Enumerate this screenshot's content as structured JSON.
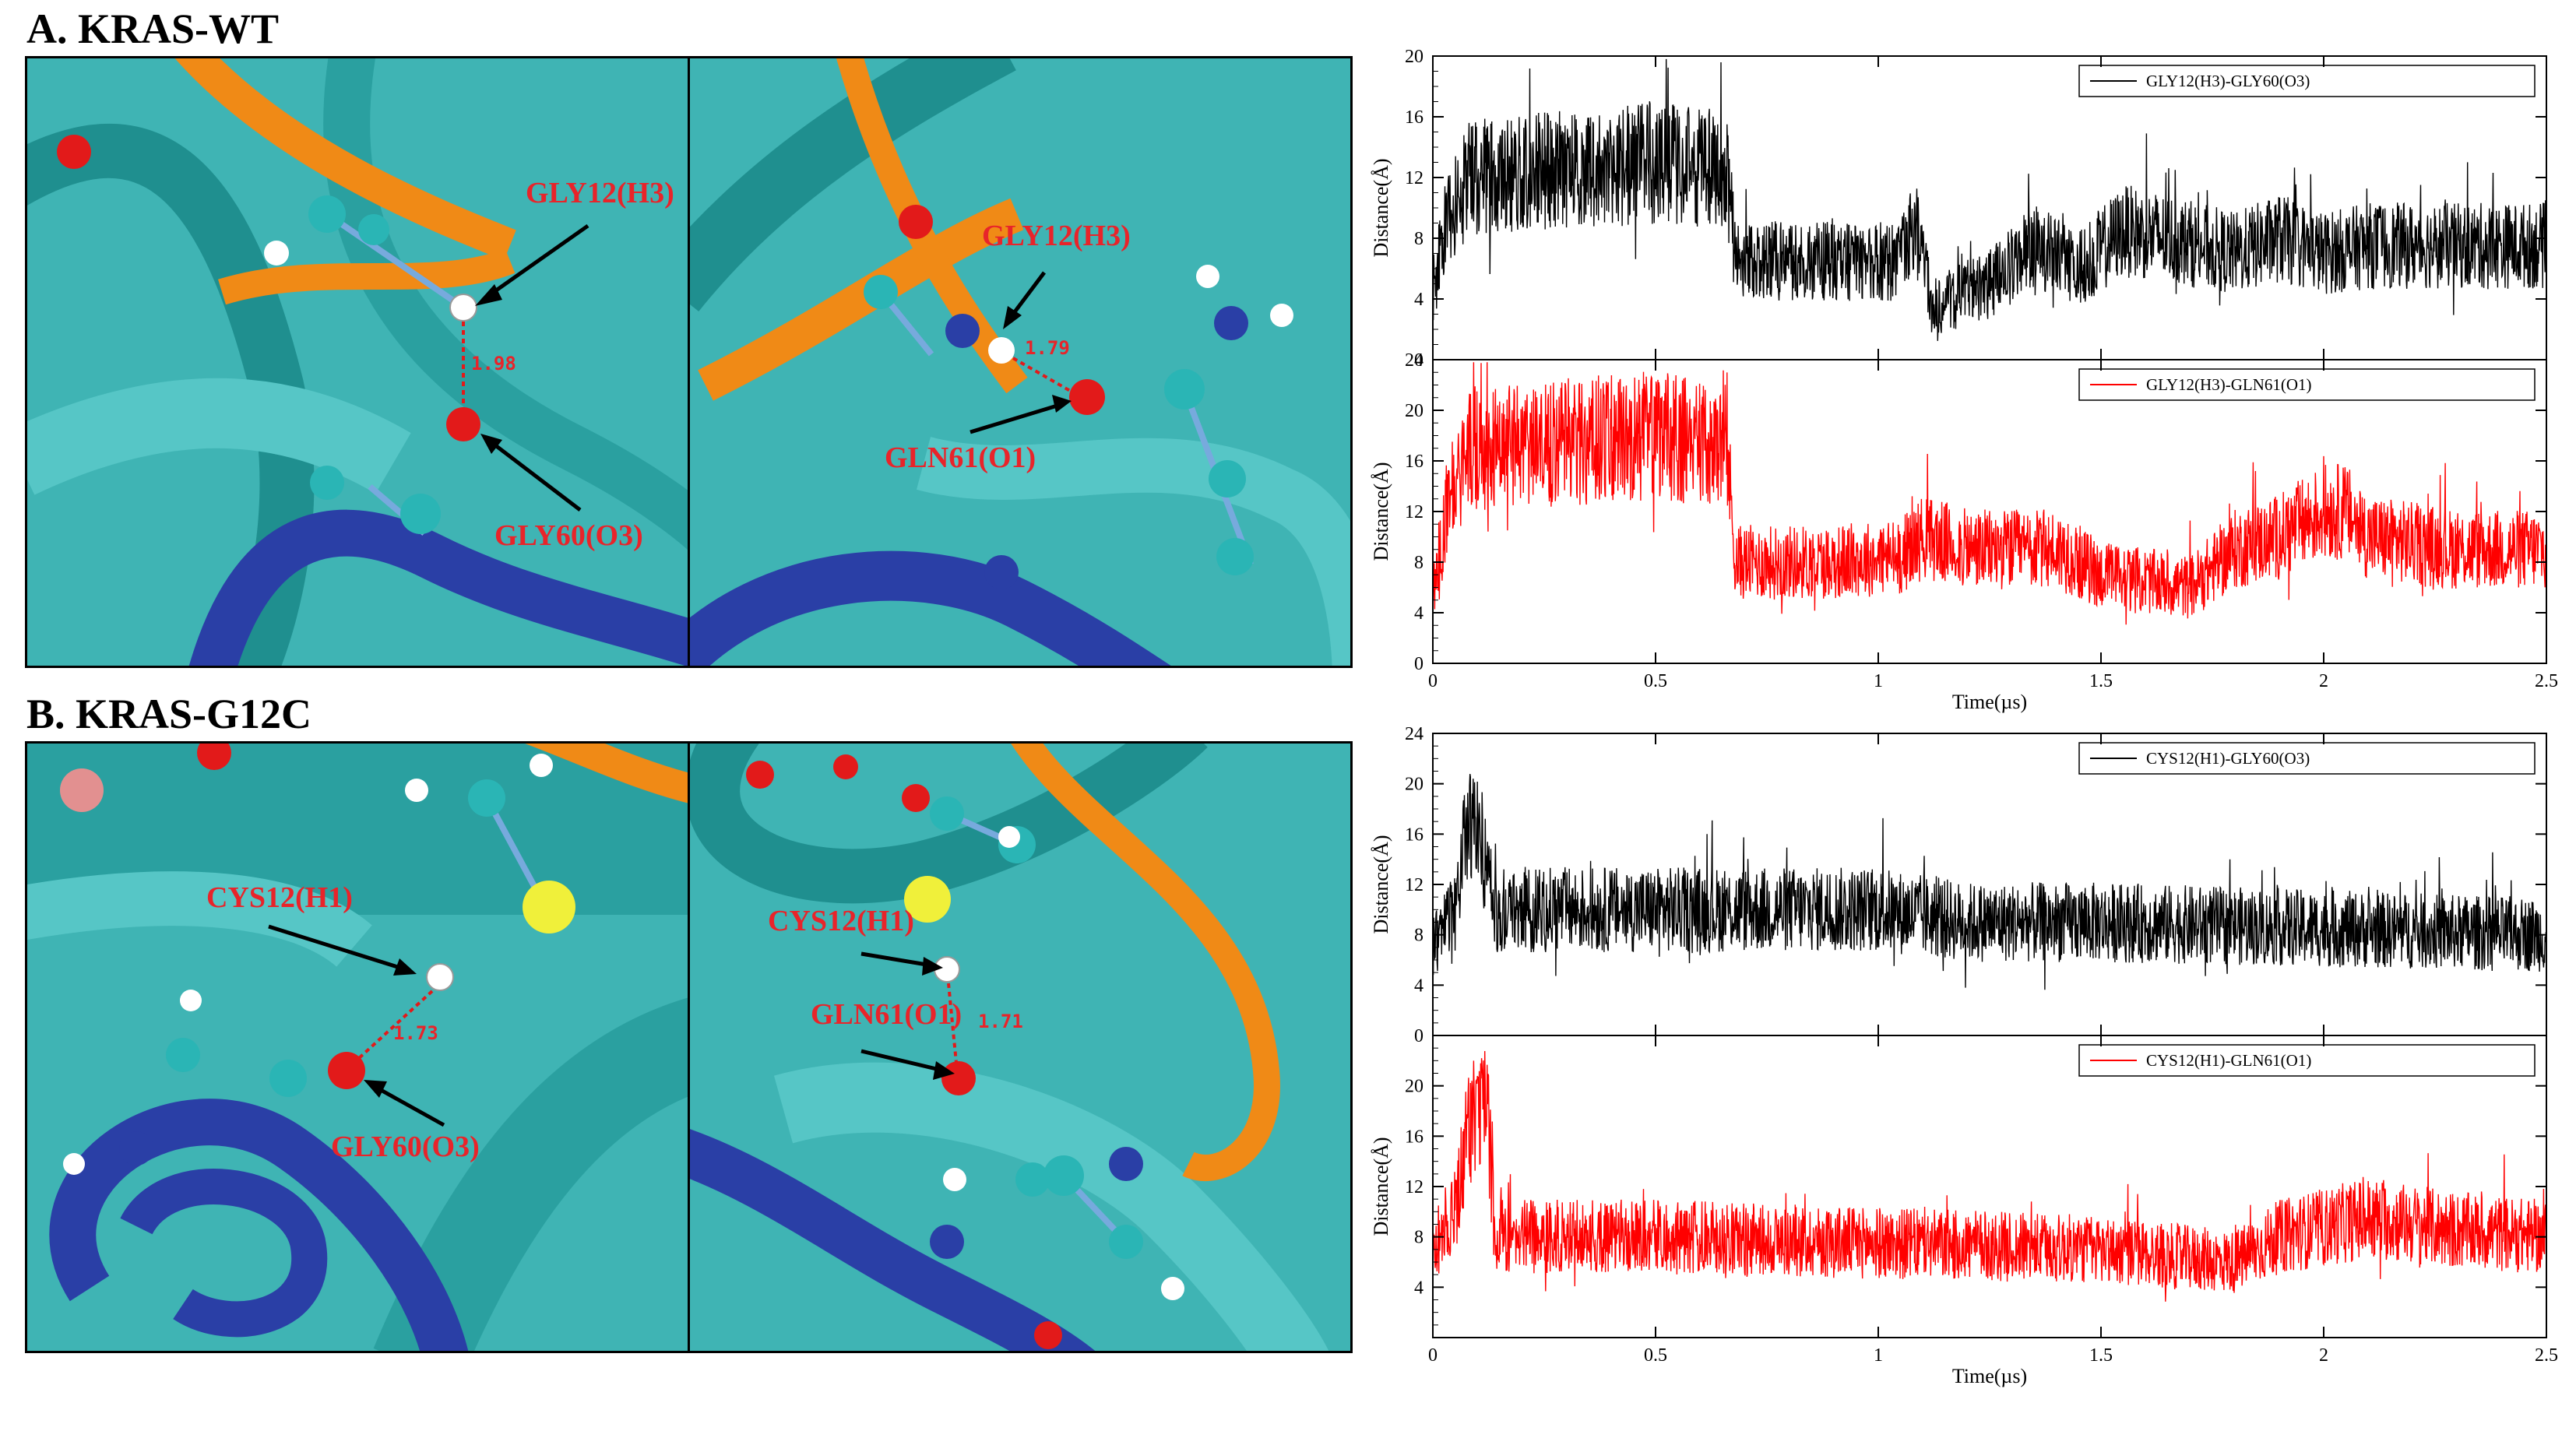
{
  "sections": {
    "a": "A. KRAS-WT",
    "b": "B. KRAS-G12C"
  },
  "structures": {
    "a_left": {
      "donor": "GLY12(H3)",
      "acceptor": "GLY60(O3)",
      "distance": "1.98"
    },
    "a_right": {
      "donor": "GLY12(H3)",
      "acceptor": "GLN61(O1)",
      "distance": "1.79"
    },
    "b_left": {
      "donor": "CYS12(H1)",
      "acceptor": "GLY60(O3)",
      "distance": "1.73"
    },
    "b_right": {
      "donor": "CYS12(H1)",
      "acceptor": "GLN61(O1)",
      "distance": "1.71"
    }
  },
  "colors": {
    "black_series": "#000000",
    "red_series": "#ff0000",
    "ribbon_cyan": "#3fb4b4",
    "ribbon_orange": "#f08a16",
    "ribbon_blue": "#2a3fa6",
    "label_red": "#e8242a"
  },
  "chart_data": [
    {
      "type": "line",
      "group": "A. KRAS-WT",
      "ylabel": "Distance(Å)",
      "xlabel": "",
      "xlim": [
        0,
        2.5
      ],
      "ylim": [
        0,
        20
      ],
      "yticks": [
        0,
        4,
        8,
        12,
        16,
        20
      ],
      "xticks": [],
      "legend": "top-right",
      "series": [
        {
          "name": "GLY12(H3)-GLY60(O3)",
          "color": "#000000",
          "profile": [
            [
              0,
              4.5
            ],
            [
              0.03,
              9
            ],
            [
              0.08,
              12
            ],
            [
              0.3,
              12.5
            ],
            [
              0.5,
              13
            ],
            [
              0.66,
              12.5
            ],
            [
              0.68,
              6.5
            ],
            [
              0.9,
              6.5
            ],
            [
              1.05,
              6.5
            ],
            [
              1.08,
              9
            ],
            [
              1.1,
              7
            ],
            [
              1.12,
              3.5
            ],
            [
              1.25,
              5
            ],
            [
              1.35,
              7.5
            ],
            [
              1.45,
              6
            ],
            [
              1.55,
              8.5
            ],
            [
              1.65,
              8
            ],
            [
              1.8,
              7
            ],
            [
              1.9,
              8
            ],
            [
              2.0,
              7
            ],
            [
              2.1,
              7.5
            ],
            [
              2.3,
              7.5
            ],
            [
              2.5,
              7.5
            ]
          ]
        }
      ]
    },
    {
      "type": "line",
      "group": "A. KRAS-WT",
      "ylabel": "Distance(Å)",
      "xlabel": "Time(µs)",
      "xlim": [
        0,
        2.5
      ],
      "ylim": [
        0,
        24
      ],
      "yticks": [
        0,
        4,
        8,
        12,
        16,
        20,
        24
      ],
      "xticks": [
        0,
        0.5,
        1,
        1.5,
        2,
        2.5
      ],
      "legend": "top-right",
      "series": [
        {
          "name": "GLY12(H3)-GLN61(O1)",
          "color": "#ff0000",
          "profile": [
            [
              0,
              5
            ],
            [
              0.03,
              12
            ],
            [
              0.08,
              17
            ],
            [
              0.3,
              17.5
            ],
            [
              0.5,
              18
            ],
            [
              0.66,
              17
            ],
            [
              0.68,
              8
            ],
            [
              0.9,
              8
            ],
            [
              1.05,
              8.5
            ],
            [
              1.1,
              10
            ],
            [
              1.2,
              9
            ],
            [
              1.4,
              9
            ],
            [
              1.5,
              7
            ],
            [
              1.7,
              6
            ],
            [
              1.8,
              9
            ],
            [
              1.9,
              10
            ],
            [
              2.0,
              12
            ],
            [
              2.05,
              12
            ],
            [
              2.1,
              10
            ],
            [
              2.3,
              9
            ],
            [
              2.5,
              9
            ]
          ]
        }
      ]
    },
    {
      "type": "line",
      "group": "B. KRAS-G12C",
      "ylabel": "Distance(Å)",
      "xlabel": "",
      "xlim": [
        0,
        2.5
      ],
      "ylim": [
        0,
        24
      ],
      "yticks": [
        0,
        4,
        8,
        12,
        16,
        20,
        24
      ],
      "xticks": [],
      "legend": "top-right",
      "series": [
        {
          "name": "CYS12(H1)-GLY60(O3)",
          "color": "#000000",
          "profile": [
            [
              0,
              7
            ],
            [
              0.05,
              10
            ],
            [
              0.08,
              17
            ],
            [
              0.11,
              15
            ],
            [
              0.14,
              10
            ],
            [
              0.5,
              10
            ],
            [
              1.0,
              10
            ],
            [
              1.2,
              9
            ],
            [
              1.5,
              9
            ],
            [
              2.0,
              8.5
            ],
            [
              2.5,
              8
            ]
          ]
        }
      ]
    },
    {
      "type": "line",
      "group": "B. KRAS-G12C",
      "ylabel": "Distance(Å)",
      "xlabel": "Time(µs)",
      "xlim": [
        0,
        2.5
      ],
      "ylim": [
        0,
        24
      ],
      "yticks": [
        4,
        8,
        12,
        16,
        20
      ],
      "xticks": [
        0,
        0.5,
        1,
        1.5,
        2,
        2.5
      ],
      "legend": "top-right",
      "series": [
        {
          "name": "CYS12(H1)-GLN61(O1)",
          "color": "#ff0000",
          "profile": [
            [
              0,
              7
            ],
            [
              0.05,
              10
            ],
            [
              0.08,
              17
            ],
            [
              0.12,
              19
            ],
            [
              0.14,
              8
            ],
            [
              0.5,
              8
            ],
            [
              1.0,
              7.5
            ],
            [
              1.5,
              7
            ],
            [
              1.8,
              6
            ],
            [
              1.9,
              8
            ],
            [
              2.1,
              9.5
            ],
            [
              2.3,
              8.5
            ],
            [
              2.5,
              8
            ]
          ]
        }
      ]
    }
  ]
}
